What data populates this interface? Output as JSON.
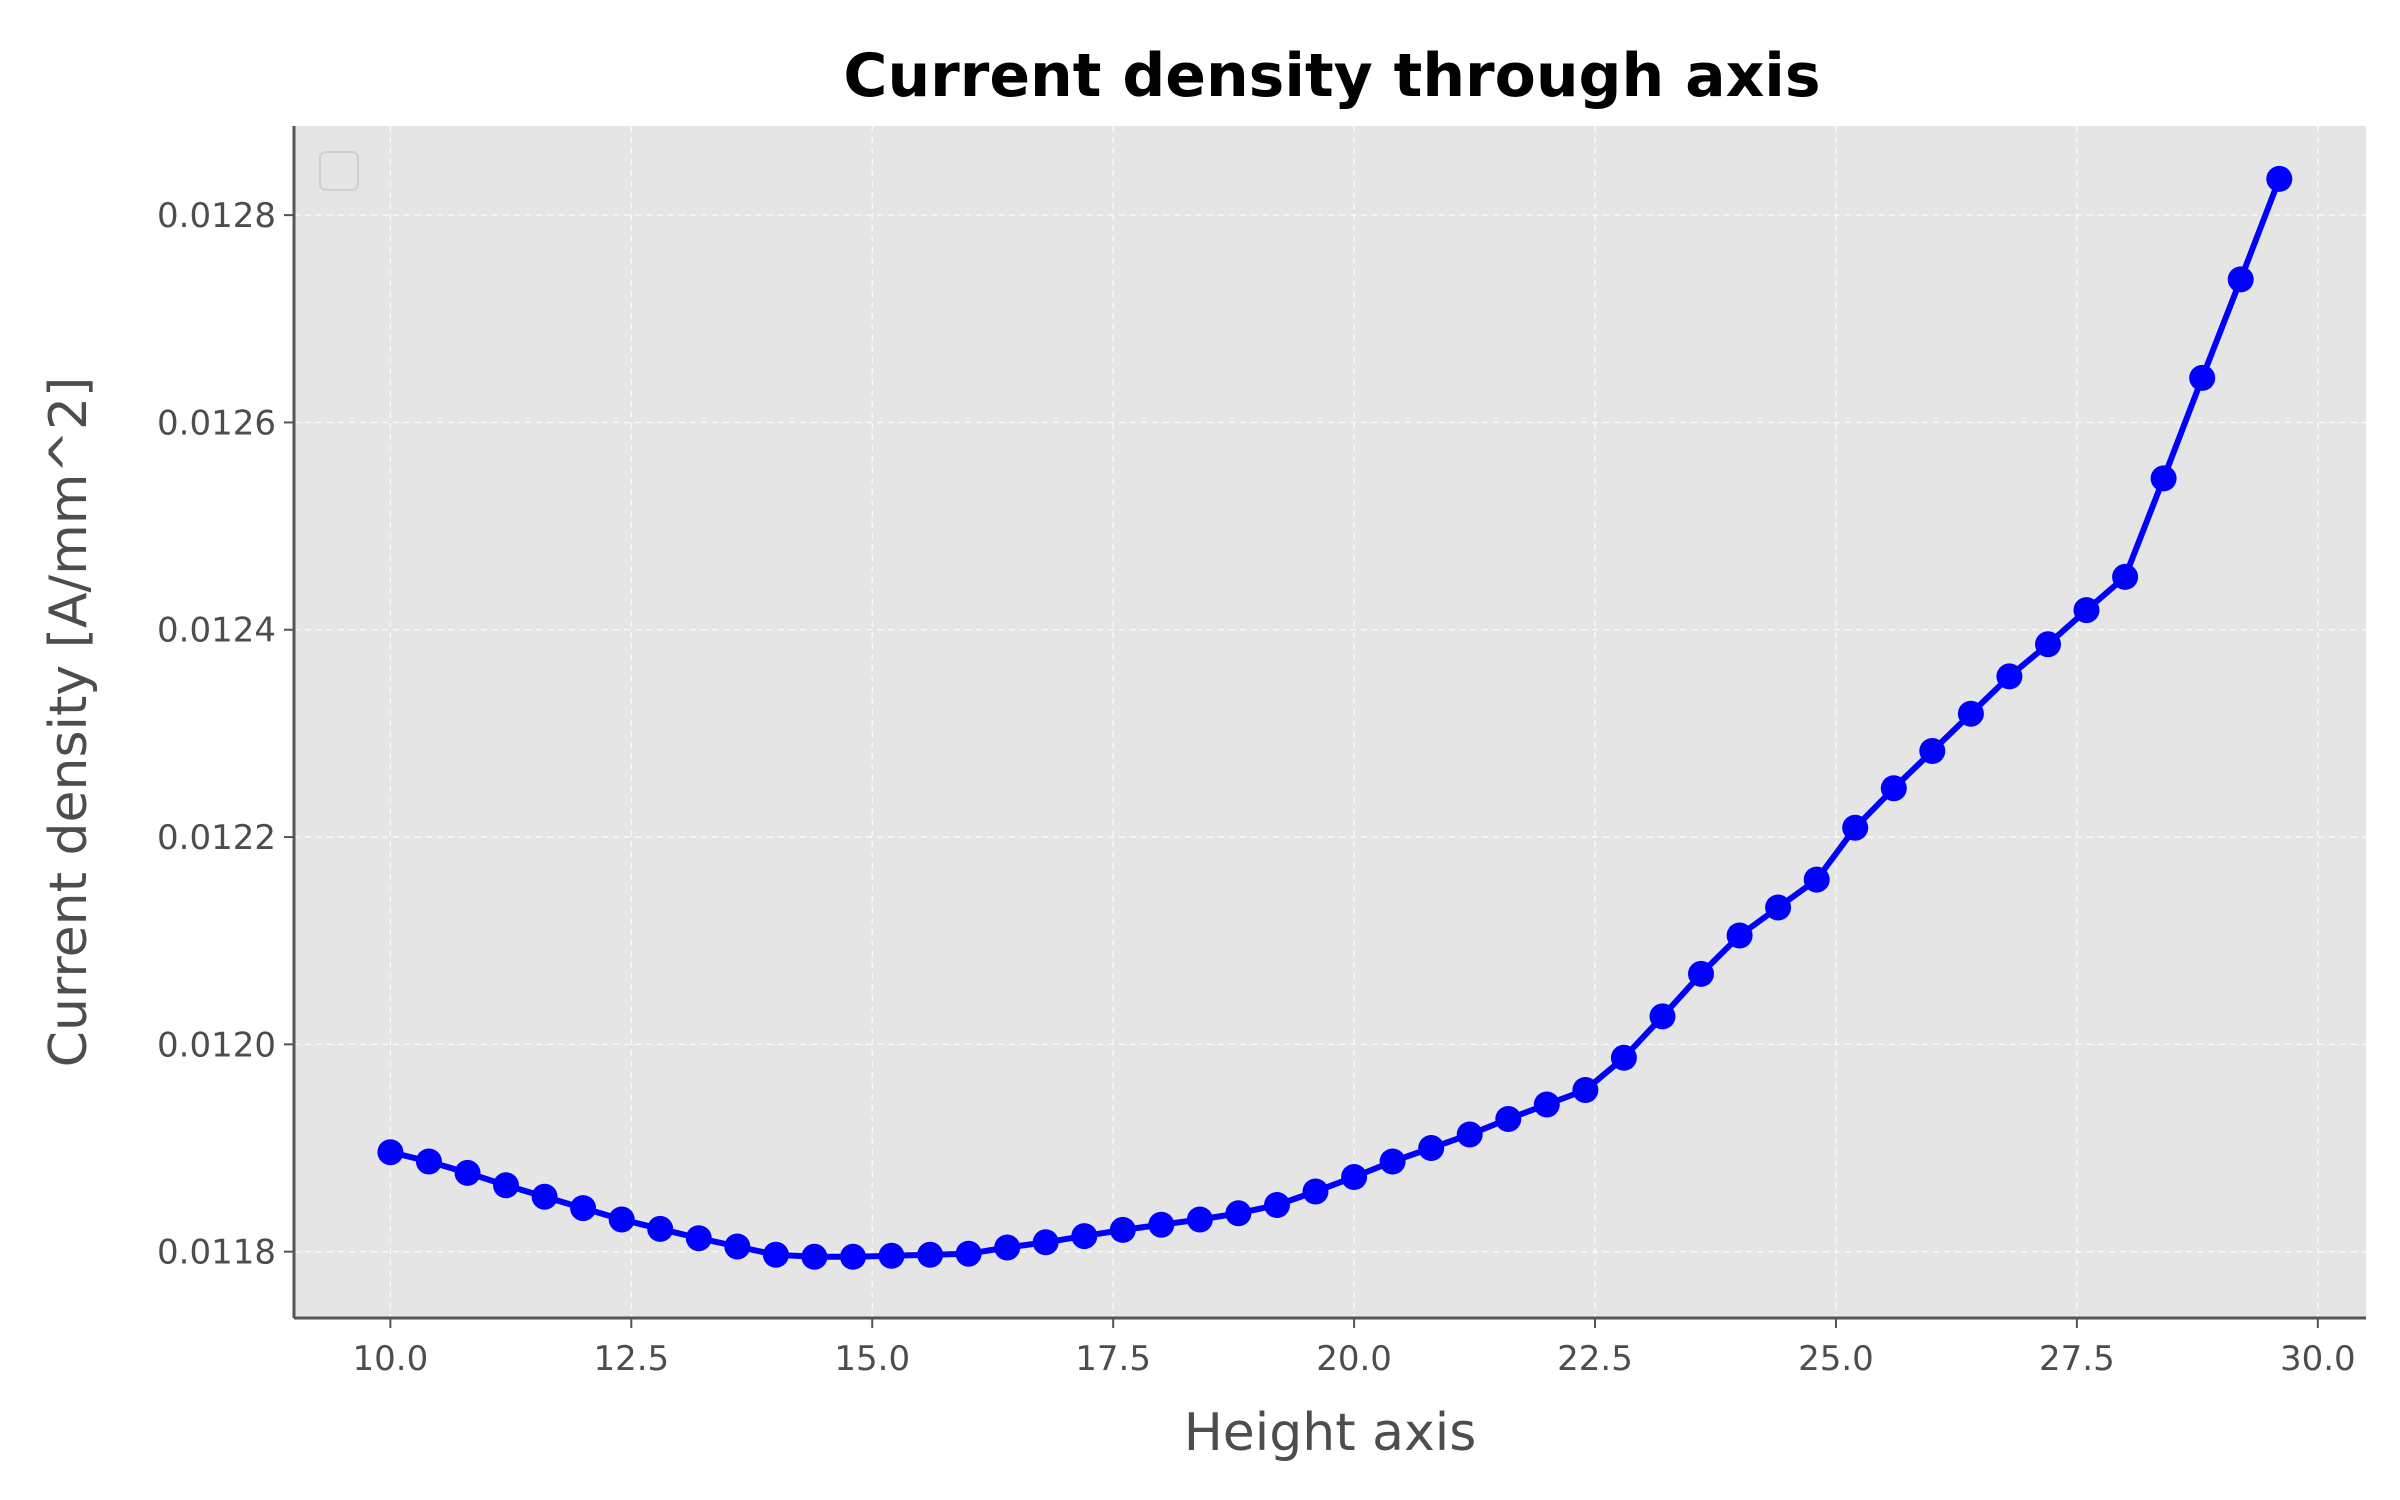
{
  "chart_data": {
    "type": "line",
    "title": "Current density through axis",
    "xlabel": "Height axis",
    "ylabel": "Current density [A/mm^2]",
    "xlim": [
      9.0,
      30.5
    ],
    "ylim": [
      0.011736,
      0.012886
    ],
    "xticks": [
      10.0,
      12.5,
      15.0,
      17.5,
      20.0,
      22.5,
      25.0,
      27.5,
      30.0
    ],
    "xtick_labels": [
      "10.0",
      "12.5",
      "15.0",
      "17.5",
      "20.0",
      "22.5",
      "25.0",
      "27.5",
      "30.0"
    ],
    "yticks": [
      0.0118,
      0.012,
      0.0122,
      0.0124,
      0.0126,
      0.0128
    ],
    "ytick_labels": [
      "0.0118",
      "0.0120",
      "0.0122",
      "0.0124",
      "0.0126",
      "0.0128"
    ],
    "grid": true,
    "legend": "top-left, empty",
    "colors": {
      "series": "#0000ff",
      "plot_background": "#e5e5e5",
      "grid": "#ffffff"
    },
    "series": [
      {
        "x": [
          10.0,
          10.4,
          10.8,
          11.2,
          11.6,
          12.0,
          12.4,
          12.8,
          13.2,
          13.6,
          14.0,
          14.4,
          14.8,
          15.2,
          15.6,
          16.0,
          16.4,
          16.8,
          17.2,
          17.6,
          18.0,
          18.4,
          18.8,
          19.2,
          19.6,
          20.0,
          20.4,
          20.8,
          21.2,
          21.6,
          22.0,
          22.4,
          22.8,
          23.2,
          23.6,
          24.0,
          24.4,
          24.8,
          25.2,
          25.6,
          26.0,
          26.4,
          26.8,
          27.2,
          27.6,
          28.0,
          28.4,
          28.8,
          29.2,
          29.6
        ],
        "y": [
          0.011896,
          0.011887,
          0.011876,
          0.011864,
          0.011853,
          0.011842,
          0.011831,
          0.011822,
          0.011813,
          0.011805,
          0.011797,
          0.011795,
          0.011795,
          0.011796,
          0.011797,
          0.011798,
          0.011804,
          0.011809,
          0.011815,
          0.011821,
          0.011826,
          0.011831,
          0.011837,
          0.011845,
          0.011858,
          0.011872,
          0.011887,
          0.0119,
          0.011913,
          0.011928,
          0.011942,
          0.011956,
          0.011987,
          0.012027,
          0.012068,
          0.012105,
          0.012132,
          0.012159,
          0.012209,
          0.012247,
          0.012283,
          0.012319,
          0.012355,
          0.012386,
          0.012419,
          0.012451,
          0.012546,
          0.012643,
          0.012738,
          0.012835
        ]
      }
    ]
  }
}
